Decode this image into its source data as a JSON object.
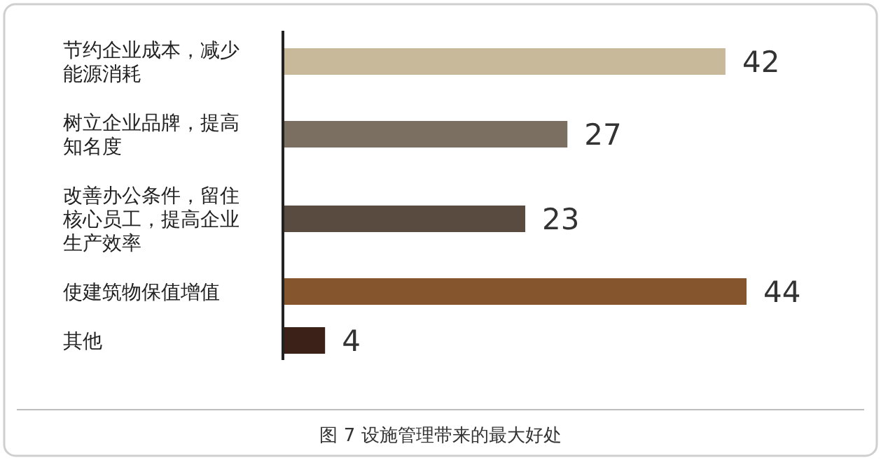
{
  "chart_data": {
    "type": "bar",
    "orientation": "horizontal",
    "title": "图 7 设施管理带来的最大好处",
    "categories": [
      "节约企业成本，减少能源消耗",
      "树立企业品牌，提高知名度",
      "改善办公条件，留住核心员工，提高企业生产效率",
      "使建筑物保值增值",
      "其他"
    ],
    "values": [
      42,
      27,
      23,
      44,
      4
    ],
    "colors": [
      "#c9b99b",
      "#7b6f61",
      "#5a4b41",
      "#85552d",
      "#3b2118"
    ],
    "data_labels": true
  }
}
